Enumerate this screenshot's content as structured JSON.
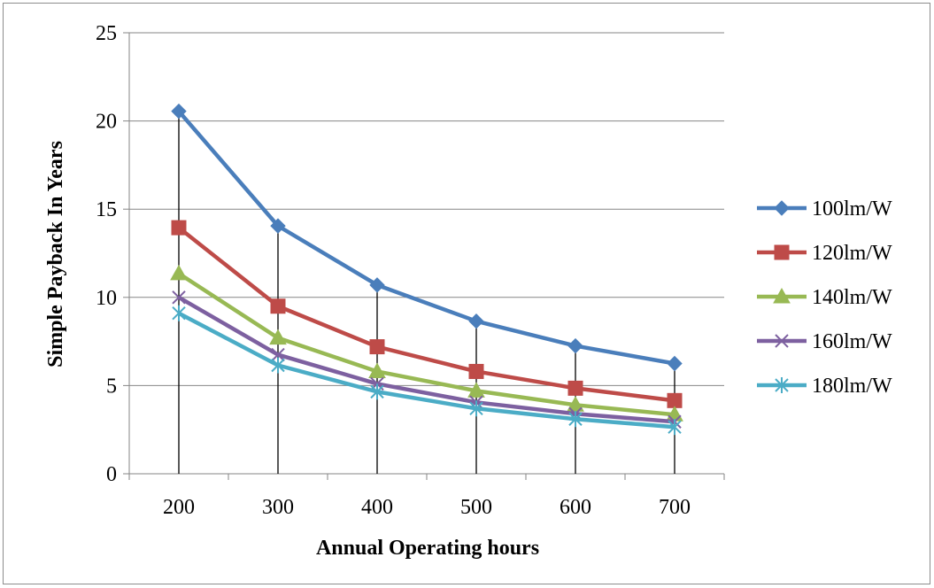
{
  "chart_data": {
    "type": "line",
    "title": "",
    "xlabel": "Annual Operating hours",
    "ylabel": "Simple Payback In Years",
    "categories": [
      "200",
      "300",
      "400",
      "500",
      "600",
      "700"
    ],
    "ylim": [
      0,
      25
    ],
    "yticks": [
      "0",
      "5",
      "10",
      "15",
      "20",
      "25"
    ],
    "grid": "horizontal",
    "legend_position": "right",
    "drop_lines": true,
    "series": [
      {
        "name": "100lm/W",
        "values": [
          20.55,
          14.05,
          10.7,
          8.65,
          7.25,
          6.25
        ],
        "color": "#4a7ebb",
        "marker": "diamond"
      },
      {
        "name": "120lm/W",
        "values": [
          13.95,
          9.5,
          7.2,
          5.8,
          4.85,
          4.15
        ],
        "color": "#be4b48",
        "marker": "square"
      },
      {
        "name": "140lm/W",
        "values": [
          11.35,
          7.7,
          5.8,
          4.7,
          3.9,
          3.35
        ],
        "color": "#98b954",
        "marker": "triangle"
      },
      {
        "name": "160lm/W",
        "values": [
          10.0,
          6.75,
          5.1,
          4.05,
          3.4,
          2.95
        ],
        "color": "#7d60a0",
        "marker": "x"
      },
      {
        "name": "180lm/W",
        "values": [
          9.1,
          6.15,
          4.65,
          3.7,
          3.1,
          2.65
        ],
        "color": "#4bacc6",
        "marker": "star"
      }
    ]
  }
}
